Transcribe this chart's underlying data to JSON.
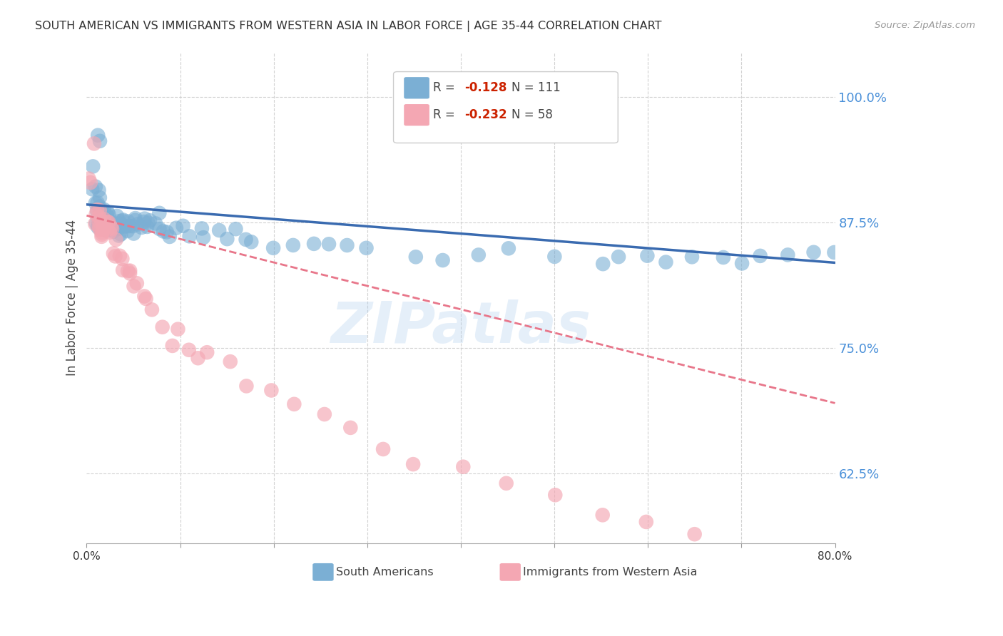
{
  "title": "SOUTH AMERICAN VS IMMIGRANTS FROM WESTERN ASIA IN LABOR FORCE | AGE 35-44 CORRELATION CHART",
  "source": "Source: ZipAtlas.com",
  "ylabel": "In Labor Force | Age 35-44",
  "yticks": [
    0.625,
    0.75,
    0.875,
    1.0
  ],
  "ytick_labels": [
    "62.5%",
    "75.0%",
    "87.5%",
    "100.0%"
  ],
  "xmin": 0.0,
  "xmax": 0.8,
  "ymin": 0.555,
  "ymax": 1.045,
  "blue_color": "#7BAFD4",
  "pink_color": "#F4A7B3",
  "blue_line_color": "#3A6BB0",
  "pink_line_color": "#E8768A",
  "legend_label_blue": "South Americans",
  "legend_label_pink": "Immigrants from Western Asia",
  "watermark": "ZIPatlas",
  "blue_trend_x0": 0.0,
  "blue_trend_x1": 0.8,
  "blue_trend_y0": 0.893,
  "blue_trend_y1": 0.835,
  "pink_trend_x0": 0.0,
  "pink_trend_x1": 0.8,
  "pink_trend_y0": 0.882,
  "pink_trend_y1": 0.695,
  "blue_scatter_x": [
    0.005,
    0.007,
    0.009,
    0.009,
    0.01,
    0.01,
    0.011,
    0.012,
    0.013,
    0.013,
    0.014,
    0.014,
    0.015,
    0.015,
    0.015,
    0.016,
    0.016,
    0.017,
    0.018,
    0.018,
    0.019,
    0.019,
    0.02,
    0.02,
    0.021,
    0.021,
    0.022,
    0.022,
    0.023,
    0.023,
    0.024,
    0.025,
    0.025,
    0.026,
    0.027,
    0.028,
    0.03,
    0.03,
    0.031,
    0.032,
    0.033,
    0.035,
    0.035,
    0.036,
    0.037,
    0.038,
    0.04,
    0.04,
    0.041,
    0.042,
    0.043,
    0.045,
    0.047,
    0.048,
    0.05,
    0.05,
    0.052,
    0.055,
    0.058,
    0.06,
    0.062,
    0.065,
    0.068,
    0.07,
    0.072,
    0.075,
    0.078,
    0.08,
    0.085,
    0.09,
    0.095,
    0.1,
    0.11,
    0.12,
    0.13,
    0.14,
    0.15,
    0.16,
    0.17,
    0.18,
    0.2,
    0.22,
    0.24,
    0.26,
    0.28,
    0.3,
    0.35,
    0.38,
    0.42,
    0.45,
    0.5,
    0.55,
    0.57,
    0.6,
    0.62,
    0.65,
    0.68,
    0.7,
    0.72,
    0.75,
    0.78,
    0.8
  ],
  "blue_scatter_y": [
    0.91,
    0.935,
    0.875,
    0.96,
    0.885,
    0.91,
    0.955,
    0.875,
    0.88,
    0.9,
    0.875,
    0.895,
    0.875,
    0.885,
    0.895,
    0.875,
    0.885,
    0.875,
    0.875,
    0.89,
    0.875,
    0.895,
    0.87,
    0.875,
    0.875,
    0.885,
    0.875,
    0.88,
    0.875,
    0.885,
    0.875,
    0.87,
    0.875,
    0.875,
    0.87,
    0.875,
    0.87,
    0.875,
    0.87,
    0.875,
    0.87,
    0.87,
    0.875,
    0.87,
    0.875,
    0.87,
    0.875,
    0.87,
    0.87,
    0.875,
    0.87,
    0.875,
    0.87,
    0.875,
    0.87,
    0.875,
    0.87,
    0.87,
    0.875,
    0.875,
    0.87,
    0.875,
    0.87,
    0.875,
    0.87,
    0.875,
    0.87,
    0.87,
    0.87,
    0.865,
    0.87,
    0.87,
    0.86,
    0.865,
    0.86,
    0.86,
    0.86,
    0.855,
    0.855,
    0.86,
    0.855,
    0.85,
    0.855,
    0.85,
    0.85,
    0.85,
    0.845,
    0.845,
    0.845,
    0.845,
    0.84,
    0.84,
    0.84,
    0.84,
    0.84,
    0.84,
    0.84,
    0.84,
    0.84,
    0.84,
    0.84,
    0.84
  ],
  "pink_scatter_x": [
    0.005,
    0.006,
    0.007,
    0.008,
    0.009,
    0.01,
    0.01,
    0.011,
    0.012,
    0.013,
    0.014,
    0.015,
    0.015,
    0.016,
    0.017,
    0.018,
    0.019,
    0.02,
    0.021,
    0.022,
    0.023,
    0.025,
    0.026,
    0.027,
    0.03,
    0.03,
    0.032,
    0.035,
    0.038,
    0.04,
    0.042,
    0.045,
    0.048,
    0.05,
    0.055,
    0.06,
    0.065,
    0.07,
    0.08,
    0.09,
    0.1,
    0.11,
    0.12,
    0.13,
    0.15,
    0.17,
    0.2,
    0.22,
    0.25,
    0.28,
    0.32,
    0.35,
    0.4,
    0.45,
    0.5,
    0.55,
    0.6,
    0.65
  ],
  "pink_scatter_y": [
    0.935,
    0.92,
    0.955,
    0.88,
    0.875,
    0.875,
    0.89,
    0.875,
    0.88,
    0.875,
    0.875,
    0.865,
    0.875,
    0.875,
    0.86,
    0.875,
    0.875,
    0.865,
    0.875,
    0.875,
    0.86,
    0.875,
    0.86,
    0.875,
    0.845,
    0.855,
    0.84,
    0.845,
    0.84,
    0.83,
    0.83,
    0.82,
    0.825,
    0.815,
    0.81,
    0.8,
    0.795,
    0.785,
    0.775,
    0.755,
    0.765,
    0.745,
    0.74,
    0.745,
    0.73,
    0.715,
    0.705,
    0.695,
    0.685,
    0.665,
    0.645,
    0.63,
    0.625,
    0.615,
    0.6,
    0.585,
    0.575,
    0.565
  ]
}
